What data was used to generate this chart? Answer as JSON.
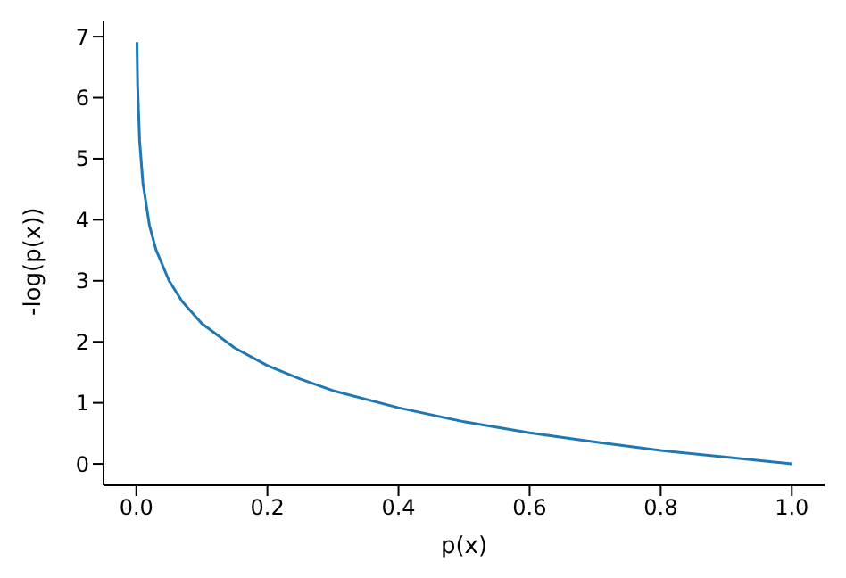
{
  "chart_data": {
    "type": "line",
    "xlabel": "p(x)",
    "ylabel": "-log(p(x))",
    "x": [
      0.001,
      0.002,
      0.005,
      0.01,
      0.02,
      0.03,
      0.05,
      0.07,
      0.1,
      0.15,
      0.2,
      0.25,
      0.3,
      0.4,
      0.5,
      0.6,
      0.7,
      0.8,
      0.9,
      1.0
    ],
    "series": [
      {
        "color": "#1f77b4",
        "values": [
          6.91,
          6.21,
          5.3,
          4.61,
          3.91,
          3.51,
          3.0,
          2.66,
          2.3,
          1.9,
          1.61,
          1.39,
          1.2,
          0.92,
          0.69,
          0.51,
          0.36,
          0.22,
          0.11,
          0.0
        ]
      }
    ],
    "xlim": [
      -0.05,
      1.05
    ],
    "ylim": [
      -0.35,
      7.25
    ],
    "xticks": [
      {
        "value": 0,
        "label": "0.0"
      },
      {
        "value": 0.2,
        "label": "0.2"
      },
      {
        "value": 0.4,
        "label": "0.4"
      },
      {
        "value": 0.6,
        "label": "0.6"
      },
      {
        "value": 0.8,
        "label": "0.8"
      },
      {
        "value": 1,
        "label": "1.0"
      }
    ],
    "yticks": [
      0,
      1,
      2,
      3,
      4,
      5,
      6,
      7
    ],
    "grid": false,
    "legend": false,
    "marker": "none",
    "line_style": "solid"
  }
}
